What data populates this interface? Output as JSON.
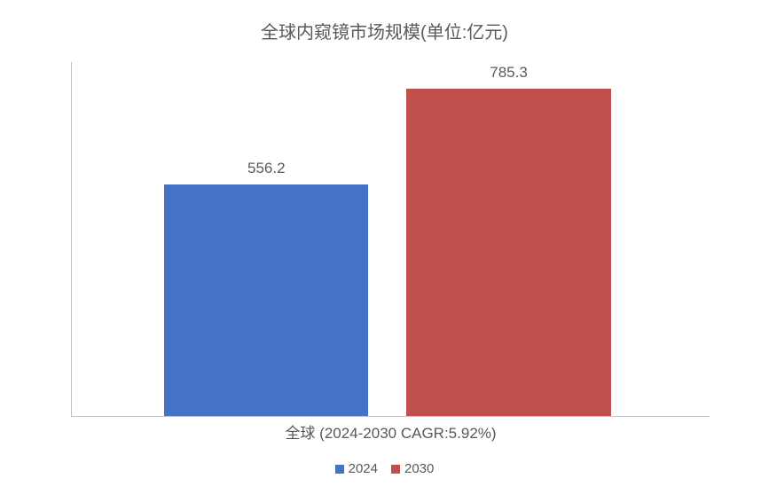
{
  "chart": {
    "type": "bar",
    "title": "全球内窥镜市场规模(单位:亿元)",
    "title_fontsize": 20,
    "title_color": "#595959",
    "background_color": "#ffffff",
    "axis_color": "#bfbfbf",
    "label_color": "#595959",
    "label_fontsize": 17,
    "legend_fontsize": 15,
    "x_axis_label": "全球 (2024-2030 CAGR:5.92%)",
    "ylim": [
      0,
      850
    ],
    "bars": [
      {
        "series": "2024",
        "value": 556.2,
        "label": "556.2",
        "color": "#4472c4",
        "left_pct": 14.5,
        "width_pct": 32
      },
      {
        "series": "2030",
        "value": 785.3,
        "label": "785.3",
        "color": "#c0504d",
        "left_pct": 52.5,
        "width_pct": 32
      }
    ],
    "legend": [
      {
        "label": "2024",
        "color": "#4472c4"
      },
      {
        "label": "2030",
        "color": "#c0504d"
      }
    ]
  }
}
